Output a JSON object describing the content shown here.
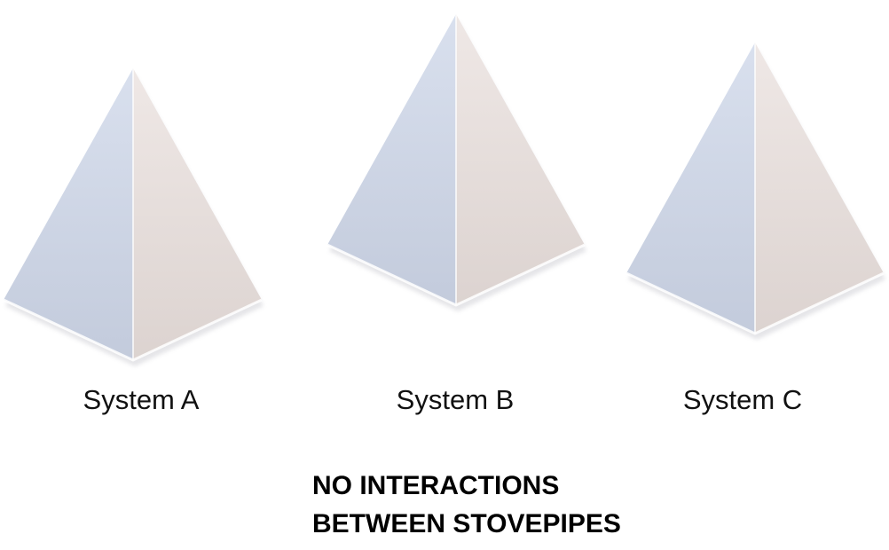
{
  "systems": [
    {
      "label": "System A"
    },
    {
      "label": "System B"
    },
    {
      "label": "System C"
    }
  ],
  "caption": {
    "line1": "NO INTERACTIONS",
    "line2": "BETWEEN STOVEPIPES"
  },
  "colors": {
    "left_face_light": "#d4dcec",
    "left_face_dark": "#bcc6d8",
    "right_face_light": "#ece4e2",
    "right_face_dark": "#d8cfcc",
    "edge": "#ffffff"
  }
}
